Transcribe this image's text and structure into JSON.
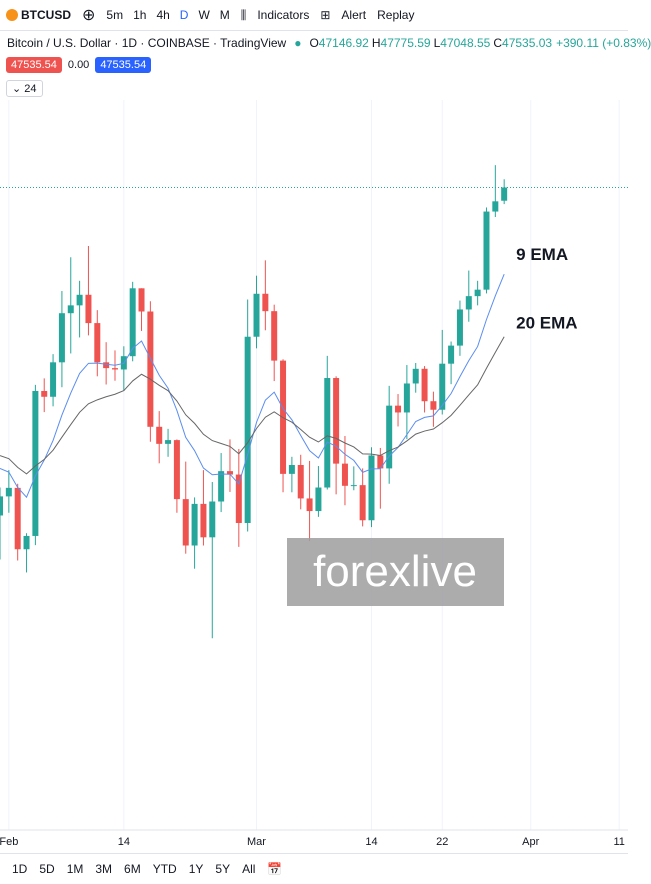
{
  "toolbar": {
    "symbol": "BTCUSD",
    "intervals": [
      "5m",
      "1h",
      "4h",
      "D",
      "W",
      "M"
    ],
    "indicators": "Indicators",
    "alert": "Alert",
    "replay": "Replay"
  },
  "price_boxes": {
    "bid": "47535.54",
    "spread": "0.00",
    "ask": "47535.54",
    "collapse": "24"
  },
  "ohlc": [
    {
      "label": "O",
      "value": 47146.92
    },
    {
      "label": "H",
      "value": 47775.59
    },
    {
      "label": "L",
      "value": 47048.55
    },
    {
      "label": "C",
      "value": 47535.03
    }
  ],
  "change": "+390.11 (+0.83%)",
  "watermark": "forexlive",
  "ranges": [
    "1D",
    "5D",
    "1M",
    "3M",
    "6M",
    "YTD",
    "1Y",
    "5Y",
    "All"
  ],
  "chart_data": {
    "type": "candlestick",
    "title": "Bitcoin / U.S. Dollar · 1D · COINBASE · TradingView",
    "x": [
      "01-31",
      "02-01",
      "02-02",
      "02-03",
      "02-04",
      "02-05",
      "02-06",
      "02-07",
      "02-08",
      "02-09",
      "02-10",
      "02-11",
      "02-12",
      "02-13",
      "02-14",
      "02-15",
      "02-16",
      "02-17",
      "02-18",
      "02-19",
      "02-20",
      "02-21",
      "02-22",
      "02-23",
      "02-24",
      "02-25",
      "02-26",
      "02-27",
      "02-28",
      "03-01",
      "03-02",
      "03-03",
      "03-04",
      "03-05",
      "03-06",
      "03-07",
      "03-08",
      "03-09",
      "03-10",
      "03-11",
      "03-12",
      "03-13",
      "03-14",
      "03-15",
      "03-16",
      "03-17",
      "03-18",
      "03-19",
      "03-20",
      "03-21",
      "03-22",
      "03-23",
      "03-24",
      "03-25",
      "03-26",
      "03-27",
      "03-28",
      "03-29"
    ],
    "open": [
      37920,
      38480,
      38730,
      36930,
      37320,
      41570,
      41400,
      42410,
      43850,
      44080,
      44390,
      43560,
      42410,
      42240,
      42200,
      42590,
      44580,
      43900,
      40520,
      40020,
      40130,
      38400,
      37040,
      38260,
      37280,
      38330,
      39220,
      39120,
      37700,
      43160,
      44420,
      43910,
      42460,
      39140,
      39400,
      38420,
      38050,
      38740,
      41950,
      39440,
      38790,
      38810,
      37780,
      39680,
      39300,
      41140,
      40940,
      41790,
      42220,
      41270,
      41020,
      42370,
      42900,
      43960,
      44350,
      44540,
      46830,
      47146.92
    ],
    "high": [
      38740,
      39250,
      38850,
      37400,
      41750,
      41940,
      42650,
      44500,
      45490,
      44800,
      45820,
      43940,
      43000,
      42760,
      42880,
      44770,
      44580,
      44200,
      40980,
      40460,
      40150,
      39500,
      38450,
      39250,
      38900,
      39750,
      40150,
      39870,
      44250,
      44950,
      45400,
      44100,
      42500,
      39640,
      39700,
      39520,
      39370,
      42600,
      42000,
      40250,
      39360,
      39300,
      39920,
      39900,
      41720,
      41480,
      42330,
      42390,
      42300,
      41550,
      43360,
      43020,
      44220,
      45100,
      44800,
      46950,
      48190,
      47775.59
    ],
    "low": [
      36630,
      38000,
      36600,
      36250,
      37050,
      40950,
      41120,
      41680,
      42670,
      43140,
      43200,
      42000,
      41760,
      41870,
      41570,
      42440,
      43330,
      40080,
      39450,
      39640,
      38000,
      36800,
      36360,
      37040,
      34320,
      38020,
      38610,
      37000,
      37450,
      42820,
      43350,
      41860,
      38600,
      38600,
      38100,
      37170,
      37880,
      38680,
      38540,
      38220,
      38660,
      37600,
      37580,
      38120,
      38850,
      40530,
      40160,
      41520,
      40940,
      40520,
      40880,
      41770,
      42600,
      43600,
      44080,
      44430,
      46670,
      47048.55
    ],
    "close": [
      38480,
      38730,
      36930,
      37320,
      41570,
      41400,
      42410,
      43850,
      44080,
      44390,
      43560,
      42410,
      42240,
      42200,
      42590,
      44580,
      43900,
      40520,
      40020,
      40130,
      38400,
      37040,
      38260,
      37280,
      38330,
      39220,
      39120,
      37700,
      43160,
      44420,
      43910,
      42460,
      39140,
      39400,
      38420,
      38050,
      38740,
      41950,
      39440,
      38790,
      38810,
      37780,
      39680,
      39300,
      41140,
      40940,
      41790,
      42220,
      41270,
      41020,
      42370,
      42900,
      43960,
      44350,
      44540,
      46830,
      47130,
      47535.03
    ],
    "up_color": "#26a69a",
    "down_color": "#ef5350",
    "series": [
      {
        "name": "9 EMA",
        "color": "#5b8def",
        "values": [
          39300,
          39190,
          38740,
          38455,
          39080,
          39545,
          40120,
          40865,
          41510,
          42085,
          42380,
          42385,
          42355,
          42325,
          42380,
          42820,
          43035,
          42530,
          42030,
          41650,
          41000,
          40210,
          39820,
          39310,
          39115,
          39135,
          39130,
          38845,
          39710,
          40650,
          41300,
          41535,
          41055,
          40725,
          40265,
          39820,
          39605,
          40075,
          39950,
          39715,
          39535,
          39185,
          39285,
          39290,
          39660,
          39915,
          40290,
          40675,
          40795,
          40840,
          41145,
          41495,
          41990,
          42460,
          42875,
          43665,
          44360,
          44995
        ]
      },
      {
        "name": "20 EMA",
        "color": "#666666",
        "values": [
          39675,
          39585,
          39330,
          39140,
          39370,
          39565,
          39835,
          40215,
          40585,
          40945,
          41195,
          41310,
          41400,
          41475,
          41580,
          41865,
          42060,
          41915,
          41735,
          41580,
          41275,
          40870,
          40620,
          40300,
          40115,
          40030,
          39945,
          39730,
          40055,
          40470,
          40800,
          40960,
          40785,
          40655,
          40440,
          40215,
          40075,
          40255,
          40180,
          40045,
          39930,
          39725,
          39720,
          39680,
          39820,
          39925,
          40105,
          40305,
          40395,
          40455,
          40640,
          40855,
          41150,
          41455,
          41750,
          42235,
          42700,
          43160
        ]
      }
    ],
    "xlim": [
      "01-31",
      "04-12"
    ],
    "xticks": [
      {
        "value": "02-01",
        "label": "Feb"
      },
      {
        "value": "02-14",
        "label": "14"
      },
      {
        "value": "03-01",
        "label": "Mar"
      },
      {
        "value": "03-14",
        "label": "14"
      },
      {
        "value": "03-22",
        "label": "22"
      },
      {
        "value": "04-01",
        "label": "Apr"
      },
      {
        "value": "04-11",
        "label": "11"
      }
    ],
    "ylim": [
      28700,
      50100
    ],
    "grid": true
  }
}
